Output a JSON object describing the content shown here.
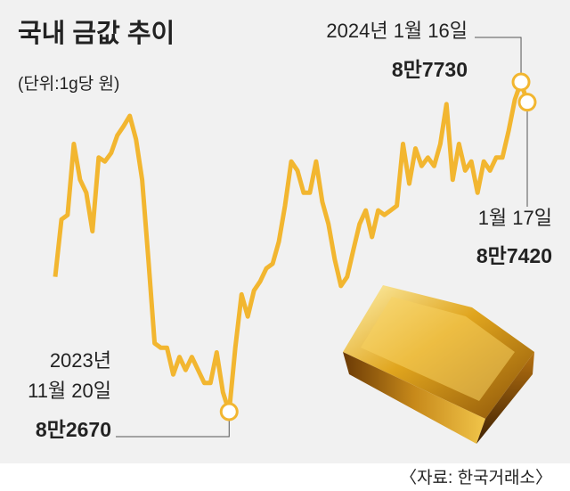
{
  "chart_data": {
    "type": "line",
    "title": "국내 금값 추이",
    "subtitle": "(단위:1g당 원)",
    "source": "〈자료: 한국거래소〉",
    "color": "#f2b630",
    "values": [
      84740,
      85620,
      85690,
      86780,
      86230,
      86030,
      85440,
      86570,
      86510,
      86640,
      86910,
      87050,
      87210,
      86850,
      86230,
      85010,
      83720,
      83650,
      83650,
      83240,
      83510,
      83310,
      83510,
      83310,
      83110,
      83110,
      83580,
      82970,
      82670,
      83650,
      84470,
      84130,
      84530,
      84670,
      84870,
      84940,
      85280,
      85830,
      86510,
      86370,
      86030,
      86030,
      86510,
      85890,
      85550,
      85010,
      84600,
      84740,
      85150,
      85550,
      85760,
      85350,
      85760,
      85690,
      85760,
      85830,
      86780,
      86170,
      86710,
      86440,
      86570,
      86440,
      86780,
      87390,
      86230,
      86780,
      86370,
      86510,
      86030,
      86510,
      86370,
      86570,
      86570,
      86980,
      87460,
      87730,
      87420
    ],
    "value_labels": [
      null,
      null,
      null,
      null,
      null,
      null,
      null,
      null,
      null,
      null,
      null,
      null,
      null,
      null,
      null,
      null,
      null,
      null,
      null,
      null,
      null,
      null,
      null,
      null,
      null,
      null,
      null,
      null,
      "8만2670",
      null,
      null,
      null,
      null,
      null,
      null,
      null,
      null,
      null,
      null,
      null,
      null,
      null,
      null,
      null,
      null,
      null,
      null,
      null,
      null,
      null,
      null,
      null,
      null,
      null,
      null,
      null,
      null,
      null,
      null,
      null,
      null,
      null,
      null,
      null,
      null,
      null,
      null,
      null,
      null,
      null,
      null,
      null,
      null,
      null,
      null,
      "8만7730",
      "8만7420"
    ],
    "point_labels": [
      null,
      null,
      null,
      null,
      null,
      null,
      null,
      null,
      null,
      null,
      null,
      null,
      null,
      null,
      null,
      null,
      null,
      null,
      null,
      null,
      null,
      null,
      null,
      null,
      null,
      null,
      null,
      null,
      [
        "2023년",
        "11월 20일"
      ],
      null,
      null,
      null,
      null,
      null,
      null,
      null,
      null,
      null,
      null,
      null,
      null,
      null,
      null,
      null,
      null,
      null,
      null,
      null,
      null,
      null,
      null,
      null,
      null,
      null,
      null,
      null,
      null,
      null,
      null,
      null,
      null,
      null,
      null,
      null,
      null,
      null,
      null,
      null,
      null,
      null,
      null,
      null,
      null,
      null,
      null,
      [
        "2024년 1월 16일"
      ],
      [
        "1월 17일"
      ]
    ]
  }
}
